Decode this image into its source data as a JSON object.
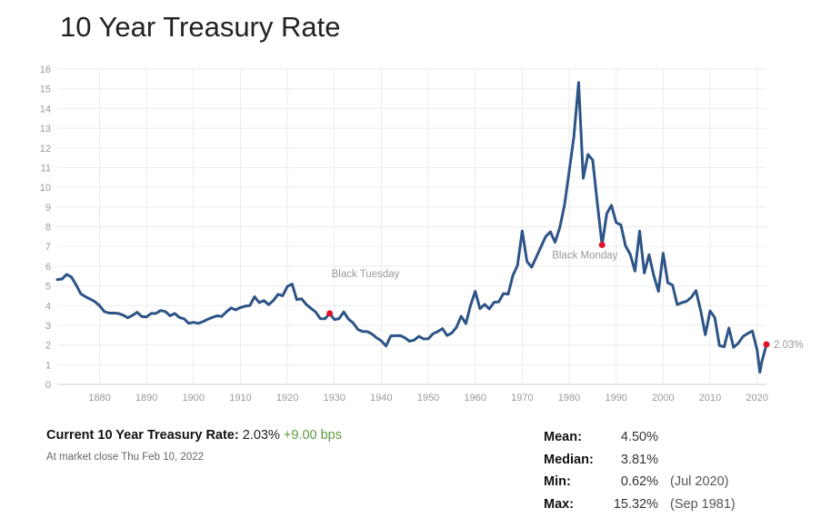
{
  "title": "10 Year Treasury Rate",
  "chart_data": {
    "type": "line",
    "title": "10 Year Treasury Rate",
    "xlabel": "",
    "ylabel": "",
    "xlim": [
      1871,
      2022
    ],
    "ylim": [
      0,
      16
    ],
    "grid": true,
    "y_ticks": [
      "0",
      "1",
      "2",
      "3",
      "4",
      "5",
      "6",
      "7",
      "8",
      "9",
      "10",
      "11",
      "12",
      "13",
      "14",
      "15",
      "16"
    ],
    "x_ticks": [
      "1880",
      "1890",
      "1900",
      "1910",
      "1920",
      "1930",
      "1940",
      "1950",
      "1960",
      "1970",
      "1980",
      "1990",
      "2000",
      "2010",
      "2020"
    ],
    "series": [
      {
        "name": "10 Year Treasury Rate",
        "color": "#2d5486",
        "x": [
          1871,
          1872,
          1873,
          1874,
          1875,
          1876,
          1877,
          1878,
          1879,
          1880,
          1881,
          1882,
          1883,
          1884,
          1885,
          1886,
          1887,
          1888,
          1889,
          1890,
          1891,
          1892,
          1893,
          1894,
          1895,
          1896,
          1897,
          1898,
          1899,
          1900,
          1901,
          1902,
          1903,
          1904,
          1905,
          1906,
          1907,
          1908,
          1909,
          1910,
          1911,
          1912,
          1913,
          1914,
          1915,
          1916,
          1917,
          1918,
          1919,
          1920,
          1921,
          1922,
          1923,
          1924,
          1925,
          1926,
          1927,
          1928,
          1929,
          1930,
          1931,
          1932,
          1933,
          1934,
          1935,
          1936,
          1937,
          1938,
          1939,
          1940,
          1941,
          1942,
          1943,
          1944,
          1945,
          1946,
          1947,
          1948,
          1949,
          1950,
          1951,
          1952,
          1953,
          1954,
          1955,
          1956,
          1957,
          1958,
          1959,
          1960,
          1961,
          1962,
          1963,
          1964,
          1965,
          1966,
          1967,
          1968,
          1969,
          1970,
          1971,
          1972,
          1973,
          1974,
          1975,
          1976,
          1977,
          1978,
          1979,
          1980,
          1981,
          1982,
          1983,
          1984,
          1985,
          1986,
          1987,
          1988,
          1989,
          1990,
          1991,
          1992,
          1993,
          1994,
          1995,
          1996,
          1997,
          1998,
          1999,
          2000,
          2001,
          2002,
          2003,
          2004,
          2005,
          2006,
          2007,
          2008,
          2009,
          2010,
          2011,
          2012,
          2013,
          2014,
          2015,
          2016,
          2017,
          2018,
          2019,
          2020,
          2020.6,
          2021,
          2022
        ],
        "y": [
          5.32,
          5.35,
          5.58,
          5.45,
          5.05,
          4.6,
          4.45,
          4.33,
          4.2,
          4.0,
          3.7,
          3.62,
          3.62,
          3.6,
          3.52,
          3.38,
          3.5,
          3.66,
          3.45,
          3.42,
          3.6,
          3.6,
          3.75,
          3.7,
          3.48,
          3.6,
          3.4,
          3.33,
          3.1,
          3.15,
          3.1,
          3.18,
          3.3,
          3.4,
          3.48,
          3.45,
          3.68,
          3.88,
          3.78,
          3.9,
          3.97,
          4.0,
          4.45,
          4.15,
          4.25,
          4.05,
          4.25,
          4.57,
          4.5,
          4.97,
          5.09,
          4.3,
          4.35,
          4.06,
          3.86,
          3.68,
          3.34,
          3.33,
          3.6,
          3.29,
          3.34,
          3.68,
          3.31,
          3.12,
          2.79,
          2.69,
          2.68,
          2.56,
          2.36,
          2.21,
          1.95,
          2.46,
          2.47,
          2.48,
          2.37,
          2.19,
          2.25,
          2.44,
          2.31,
          2.32,
          2.57,
          2.68,
          2.83,
          2.48,
          2.61,
          2.9,
          3.46,
          3.09,
          4.02,
          4.72,
          3.84,
          4.06,
          3.83,
          4.17,
          4.19,
          4.61,
          4.58,
          5.53,
          6.04,
          7.79,
          6.24,
          5.95,
          6.46,
          6.99,
          7.5,
          7.74,
          7.21,
          7.96,
          9.1,
          10.8,
          12.57,
          15.32,
          10.46,
          11.67,
          11.38,
          9.19,
          7.08,
          8.67,
          9.09,
          8.21,
          8.09,
          7.03,
          6.6,
          5.75,
          7.78,
          5.65,
          6.58,
          5.54,
          4.72,
          6.66,
          5.16,
          5.04,
          4.05,
          4.15,
          4.22,
          4.42,
          4.76,
          3.74,
          2.52,
          3.73,
          3.39,
          1.97,
          1.91,
          2.86,
          1.88,
          2.09,
          2.43,
          2.58,
          2.71,
          1.76,
          0.62,
          1.13,
          2.03
        ]
      }
    ],
    "annotations": [
      {
        "label": "Black Tuesday",
        "x": 1929,
        "y": 3.6
      },
      {
        "label": "Black Monday",
        "x": 1987,
        "y": 7.08
      },
      {
        "label": "2.03%",
        "x": 2022,
        "y": 2.03
      }
    ],
    "marker_color": "#e0102d"
  },
  "current": {
    "label": "Current 10 Year Treasury Rate:",
    "value": "2.03%",
    "change": "+9.00 bps",
    "change_color": "#5a9a3c",
    "timestamp": "At market close Thu Feb 10, 2022"
  },
  "stats": [
    {
      "label": "Mean:",
      "value": "4.50%",
      "date": ""
    },
    {
      "label": "Median:",
      "value": "3.81%",
      "date": ""
    },
    {
      "label": "Min:",
      "value": "0.62%",
      "date": "(Jul 2020)"
    },
    {
      "label": "Max:",
      "value": "15.32%",
      "date": "(Sep 1981)"
    }
  ]
}
